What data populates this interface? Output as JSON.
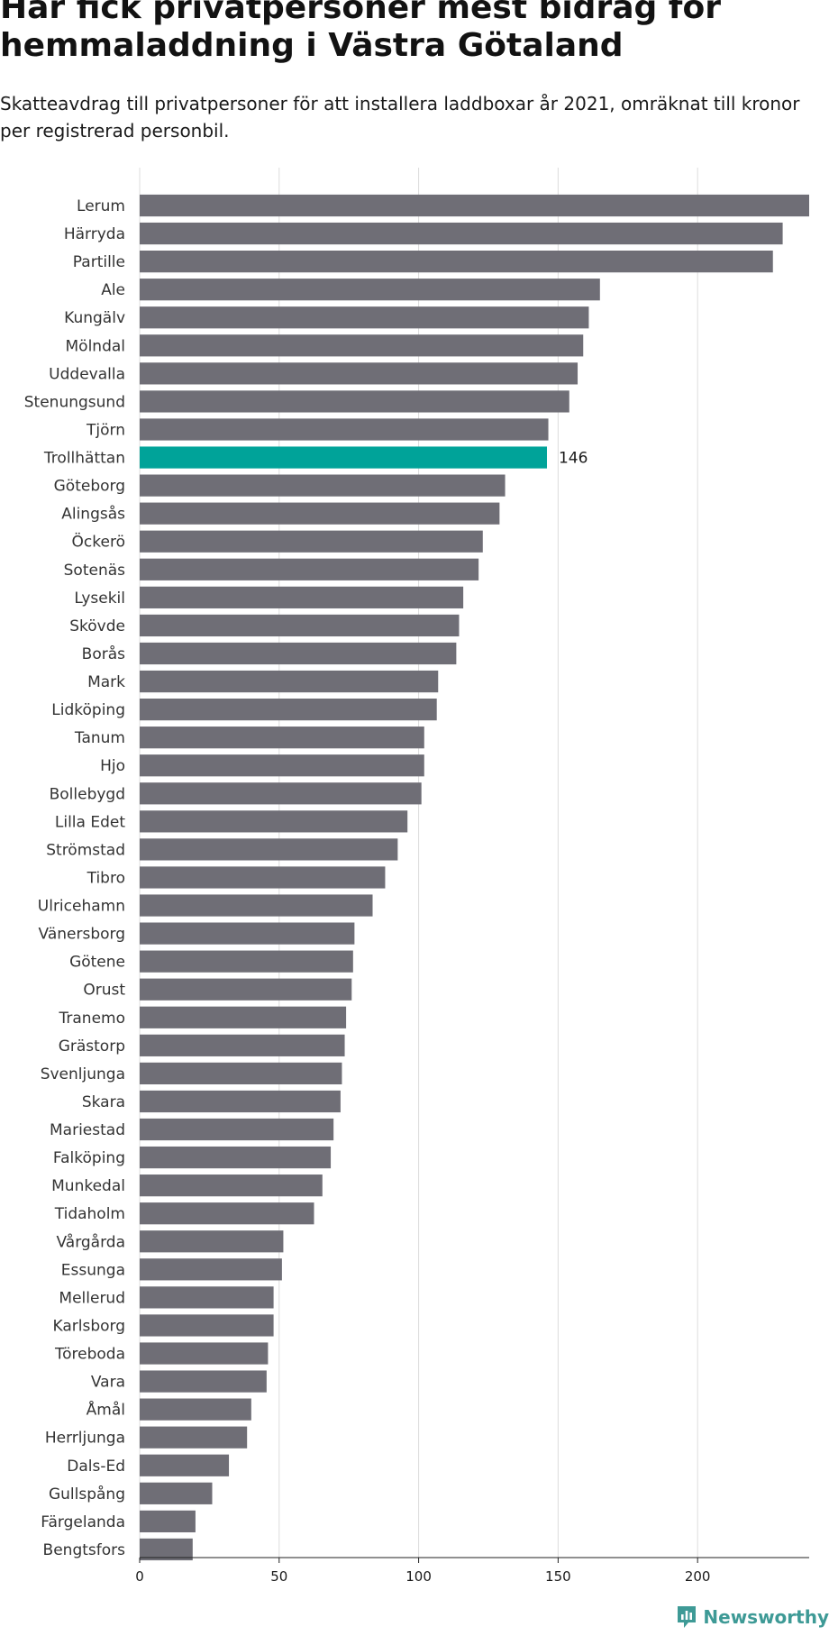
{
  "chart_data": {
    "type": "bar",
    "orientation": "horizontal",
    "title": "Här fick privatpersoner mest bidrag för hemmaladdning i Västra Götaland",
    "subtitle": "Skatteavdrag till privatpersoner för att installera laddboxar år 2021, omräknat till kronor per registrerad personbil.",
    "xlabel": "",
    "ylabel": "",
    "xlim": [
      0,
      240
    ],
    "xticks": [
      0,
      50,
      100,
      150,
      200
    ],
    "grid": true,
    "highlight": "Trollhättan",
    "highlight_label": "146",
    "categories": [
      "Lerum",
      "Härryda",
      "Partille",
      "Ale",
      "Kungälv",
      "Mölndal",
      "Uddevalla",
      "Stenungsund",
      "Tjörn",
      "Trollhättan",
      "Göteborg",
      "Alingsås",
      "Öckerö",
      "Sotenäs",
      "Lysekil",
      "Skövde",
      "Borås",
      "Mark",
      "Lidköping",
      "Tanum",
      "Hjo",
      "Bollebygd",
      "Lilla Edet",
      "Strömstad",
      "Tibro",
      "Ulricehamn",
      "Vänersborg",
      "Götene",
      "Orust",
      "Tranemo",
      "Grästorp",
      "Svenljunga",
      "Skara",
      "Mariestad",
      "Falköping",
      "Munkedal",
      "Tidaholm",
      "Vårgårda",
      "Essunga",
      "Mellerud",
      "Karlsborg",
      "Töreboda",
      "Vara",
      "Åmål",
      "Herrljunga",
      "Dals-Ed",
      "Gullspång",
      "Färgelanda",
      "Bengtsfors"
    ],
    "values": [
      240,
      230.5,
      227,
      165,
      161,
      159,
      157,
      154,
      146.5,
      146,
      131,
      129,
      123,
      121.5,
      116,
      114.5,
      113.5,
      107,
      106.5,
      102,
      102,
      101,
      96,
      92.5,
      88,
      83.5,
      77,
      76.5,
      76,
      74,
      73.5,
      72.5,
      72,
      69.5,
      68.5,
      65.5,
      62.5,
      51.5,
      51,
      48,
      48,
      46,
      45.5,
      40,
      38.5,
      32,
      26,
      20,
      19
    ],
    "colors": {
      "bar": "#6f6e76",
      "highlight": "#00a399",
      "grid": "#dcdcdc",
      "axis": "#222222"
    }
  },
  "branding": {
    "name": "Newsworthy",
    "icon": "newsworthy-logo-icon",
    "color": "#3e9a96"
  }
}
